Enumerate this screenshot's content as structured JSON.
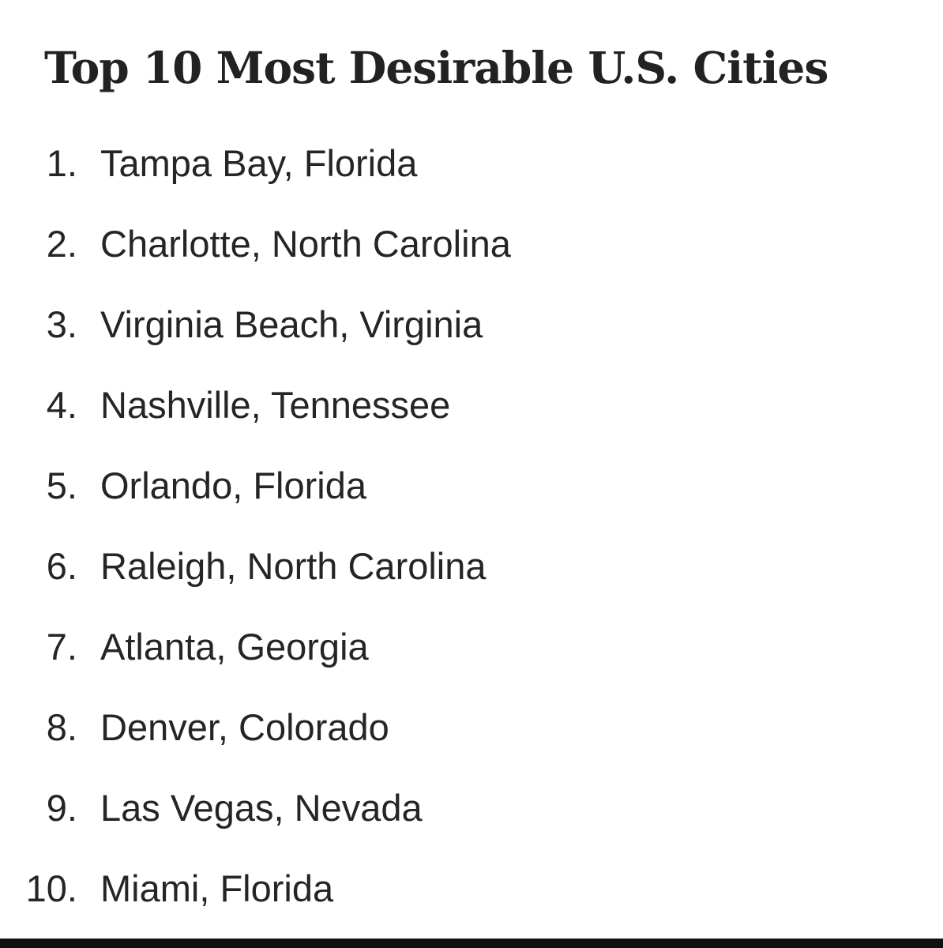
{
  "title": "Top 10 Most Desirable U.S. Cities",
  "items": [
    {
      "number": "1.",
      "text": "Tampa Bay, Florida"
    },
    {
      "number": "2.",
      "text": "Charlotte, North Carolina"
    },
    {
      "number": "3.",
      "text": "Virginia Beach, Virginia"
    },
    {
      "number": "4.",
      "text": "Nashville, Tennessee"
    },
    {
      "number": "5.",
      "text": "Orlando, Florida"
    },
    {
      "number": "6.",
      "text": "Raleigh, North Carolina"
    },
    {
      "number": "7.",
      "text": "Atlanta, Georgia"
    },
    {
      "number": "8.",
      "text": "Denver, Colorado"
    },
    {
      "number": "9.",
      "text": "Las Vegas, Nevada"
    },
    {
      "number": "10.",
      "text": "Miami, Florida"
    }
  ],
  "colors": {
    "background": "#ffffff",
    "title_text": "#222222",
    "list_text": "#252525",
    "bottom_bar": "#111111"
  }
}
